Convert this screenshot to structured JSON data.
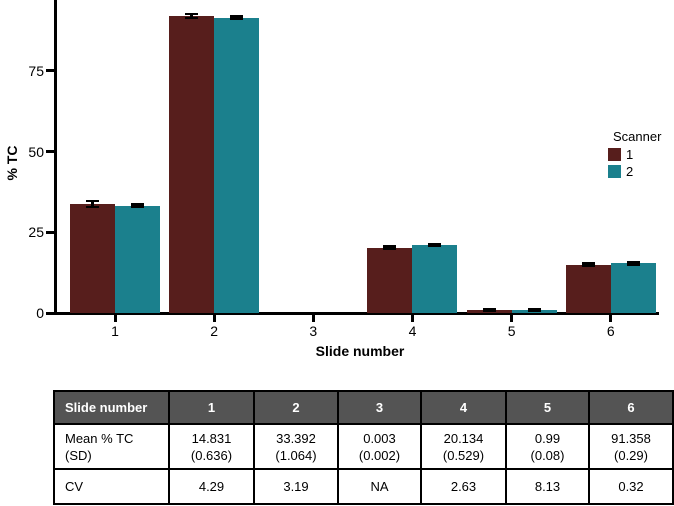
{
  "chart_data": {
    "type": "bar",
    "title": "",
    "xlabel": "Slide number",
    "ylabel": "% TC",
    "categories": [
      "1",
      "2",
      "3",
      "4",
      "5",
      "6"
    ],
    "series": [
      {
        "name": "1",
        "color": "#571E1C",
        "values": [
          33.8,
          92.0,
          0.003,
          20.2,
          1.0,
          14.9
        ],
        "sd": [
          1.0,
          0.7,
          0.002,
          0.45,
          0.35,
          0.45
        ]
      },
      {
        "name": "2",
        "color": "#1B808D",
        "values": [
          33.2,
          91.5,
          0.003,
          21.0,
          0.9,
          15.4
        ],
        "sd": [
          0.45,
          0.5,
          0.002,
          0.35,
          0.3,
          0.45
        ]
      }
    ],
    "yticks": [
      0,
      25,
      50,
      75
    ],
    "ylim": [
      0,
      97
    ],
    "grid": false,
    "legend_title": "Scanner",
    "legend_position": "right",
    "error_bars": "mean ± SD, black I-beam caps"
  },
  "table": {
    "header": [
      "Slide number",
      "1",
      "2",
      "3",
      "4",
      "5",
      "6"
    ],
    "mean_row": {
      "label_line1": "Mean % TC",
      "label_line2": "(SD)",
      "values": [
        {
          "mean": "14.831",
          "sd": "(0.636)"
        },
        {
          "mean": "33.392",
          "sd": "(1.064)"
        },
        {
          "mean": "0.003",
          "sd": "(0.002)"
        },
        {
          "mean": "20.134",
          "sd": "(0.529)"
        },
        {
          "mean": "0.99",
          "sd": "(0.08)"
        },
        {
          "mean": "91.358",
          "sd": "(0.29)"
        }
      ]
    },
    "cv_row": {
      "label": "CV",
      "values": [
        "4.29",
        "3.19",
        "NA",
        "2.63",
        "8.13",
        "0.32"
      ]
    }
  },
  "colors": {
    "scanner1": "#571E1C",
    "scanner2": "#1B808D",
    "axis": "#000000",
    "table_header_bg": "#545454",
    "table_header_text": "#FFFFFF",
    "table_border": "#000000",
    "background": "#FFFFFF"
  }
}
